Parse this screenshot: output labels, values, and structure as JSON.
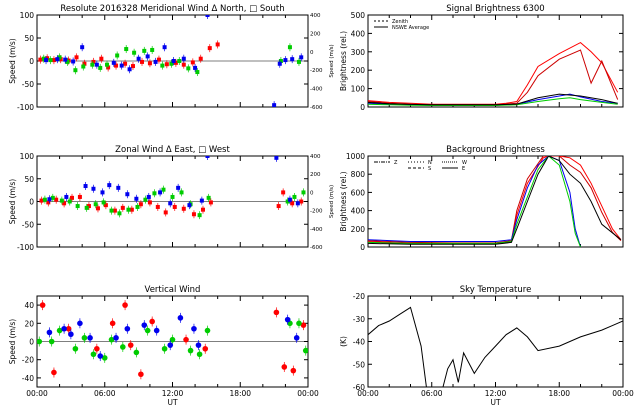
{
  "chart_data": [
    {
      "id": "meridional",
      "type": "scatter",
      "title": "Resolute   2016328     Meridional Wind    Δ North, □ South",
      "xlabel": "",
      "ylabel": "Speed (m/s)",
      "y2label": "Speed (m/s)",
      "xlim": [
        0,
        24
      ],
      "ylim": [
        -100,
        100
      ],
      "y2lim": [
        -600,
        400
      ],
      "yticks": [
        "-100",
        "-50",
        "0",
        "50",
        "100"
      ],
      "y2ticks": [
        "-600",
        "-400",
        "-200",
        "0",
        "200",
        "400"
      ],
      "series": [
        {
          "color": "#ff0000",
          "marker": "square",
          "x": [
            0.3,
            0.9,
            1.5,
            2.1,
            2.8,
            3.5,
            4.2,
            5.0,
            5.7,
            6.3,
            7.0,
            7.8,
            8.5,
            9.3,
            10.0,
            10.8,
            11.5,
            12.3,
            13.0,
            13.8,
            14.5,
            15.3,
            16.0
          ],
          "y": [
            3,
            6,
            2,
            4,
            1,
            8,
            -6,
            -2,
            5,
            -14,
            -10,
            -6,
            -11,
            -2,
            -5,
            3,
            -7,
            -4,
            -8,
            -3,
            5,
            28,
            36
          ]
        },
        {
          "color": "#00cc00",
          "marker": "square",
          "x": [
            0.6,
            1.2,
            2.0,
            2.7,
            3.4,
            4.1,
            4.9,
            5.6,
            6.2,
            7.1,
            7.9,
            8.6,
            9.5,
            10.2,
            11.1,
            11.9,
            12.6,
            13.4,
            14.2,
            21.6,
            22.4,
            23.2
          ],
          "y": [
            5,
            2,
            8,
            -2,
            -20,
            -12,
            -8,
            -15,
            -8,
            12,
            26,
            18,
            22,
            24,
            -10,
            -6,
            0,
            -16,
            -24,
            0,
            30,
            -2
          ]
        },
        {
          "color": "#0000ee",
          "marker": "square",
          "x": [
            0.8,
            1.8,
            2.5,
            3.2,
            4.0,
            5.3,
            6.8,
            7.5,
            8.2,
            9.0,
            9.8,
            10.5,
            11.3,
            12.1,
            13.0,
            14.0,
            15.1,
            21.0,
            21.5,
            22.0,
            22.6,
            23.4
          ],
          "y": [
            2,
            4,
            3,
            -1,
            30,
            -8,
            -4,
            -10,
            -18,
            5,
            10,
            -2,
            30,
            0,
            5,
            -15,
            100,
            -96,
            -6,
            2,
            4,
            8
          ]
        }
      ]
    },
    {
      "id": "signal",
      "type": "line",
      "title": "Signal Brightness        6300",
      "xlabel": "",
      "ylabel": "Brightness (rel.)",
      "xlim": [
        0,
        24
      ],
      "ylim": [
        0,
        500
      ],
      "yticks": [
        "0",
        "100",
        "200",
        "300",
        "400",
        "500"
      ],
      "legend": [
        "Zenith",
        "NSWE Average"
      ],
      "legend_placement": "top-left",
      "series": [
        {
          "color": "#ff0000",
          "x": [
            0,
            2,
            4,
            6,
            8,
            10,
            12,
            13,
            14,
            15,
            16,
            18,
            20,
            21,
            22,
            23.5
          ],
          "y": [
            35,
            25,
            20,
            15,
            15,
            15,
            15,
            20,
            30,
            120,
            220,
            290,
            350,
            300,
            240,
            80
          ]
        },
        {
          "color": "#cc0000",
          "x": [
            0,
            2,
            4,
            6,
            8,
            10,
            12,
            14,
            15,
            16,
            18,
            20,
            21,
            22,
            23.5
          ],
          "y": [
            30,
            20,
            15,
            12,
            12,
            12,
            12,
            20,
            80,
            170,
            260,
            310,
            130,
            250,
            40
          ]
        },
        {
          "color": "#0000ee",
          "x": [
            0,
            2,
            4,
            6,
            8,
            10,
            12,
            14,
            16,
            18,
            19,
            20,
            22,
            23.5
          ],
          "y": [
            20,
            15,
            12,
            10,
            10,
            10,
            10,
            15,
            40,
            60,
            70,
            55,
            30,
            20
          ]
        },
        {
          "color": "#00cc00",
          "x": [
            0,
            2,
            4,
            6,
            8,
            10,
            12,
            14,
            16,
            18,
            19,
            20,
            22,
            23.5
          ],
          "y": [
            15,
            12,
            10,
            8,
            8,
            8,
            8,
            12,
            30,
            45,
            50,
            40,
            25,
            15
          ]
        },
        {
          "color": "#000000",
          "x": [
            0,
            2,
            4,
            6,
            8,
            10,
            12,
            14,
            16,
            18,
            20,
            22,
            23.5
          ],
          "y": [
            25,
            18,
            14,
            12,
            12,
            12,
            12,
            16,
            50,
            70,
            60,
            40,
            20
          ]
        }
      ]
    },
    {
      "id": "zonal",
      "type": "scatter",
      "title": "Zonal Wind      Δ East, □ West",
      "xlabel": "",
      "ylabel": "Speed (m/s)",
      "y2label": "Speed (m/s)",
      "xlim": [
        0,
        24
      ],
      "ylim": [
        -100,
        100
      ],
      "y2lim": [
        -600,
        400
      ],
      "yticks": [
        "-100",
        "-50",
        "0",
        "50",
        "100"
      ],
      "y2ticks": [
        "-600",
        "-400",
        "-200",
        "0",
        "200",
        "400"
      ],
      "series": [
        {
          "color": "#ff0000",
          "marker": "square",
          "x": [
            0.4,
            1.0,
            1.7,
            2.4,
            3.1,
            3.8,
            4.6,
            5.4,
            6.1,
            6.9,
            7.6,
            8.4,
            9.2,
            10.0,
            10.7,
            11.4,
            12.2,
            13.0,
            13.9,
            14.7,
            15.4,
            21.4,
            21.8,
            22.6,
            23.4
          ],
          "y": [
            2,
            -2,
            4,
            -4,
            8,
            10,
            -10,
            -15,
            -8,
            -20,
            -14,
            -18,
            -6,
            -2,
            -12,
            -24,
            -12,
            -16,
            -28,
            -18,
            -2,
            -10,
            20,
            -4,
            0
          ]
        },
        {
          "color": "#00cc00",
          "marker": "square",
          "x": [
            0.7,
            1.4,
            2.2,
            2.9,
            3.6,
            4.4,
            5.2,
            5.9,
            6.6,
            7.3,
            8.1,
            8.9,
            9.6,
            10.4,
            11.2,
            12.0,
            12.8,
            13.6,
            14.4,
            15.2,
            22.2,
            22.8,
            23.6
          ],
          "y": [
            4,
            8,
            2,
            0,
            -10,
            -14,
            -6,
            -2,
            -20,
            -26,
            -18,
            -12,
            4,
            18,
            26,
            10,
            20,
            -6,
            -30,
            8,
            0,
            10,
            20
          ]
        },
        {
          "color": "#0000ee",
          "marker": "square",
          "x": [
            1.1,
            2.6,
            4.3,
            5.0,
            5.8,
            6.4,
            7.2,
            8.0,
            8.8,
            9.9,
            10.9,
            11.8,
            12.5,
            13.5,
            14.6,
            15.1,
            21.2,
            22.4,
            23.1
          ],
          "y": [
            5,
            10,
            34,
            28,
            20,
            36,
            30,
            16,
            6,
            10,
            20,
            -4,
            30,
            -8,
            2,
            100,
            96,
            4,
            -4
          ]
        }
      ]
    },
    {
      "id": "background",
      "type": "line",
      "title": "Background Brightness",
      "xlabel": "",
      "ylabel": "Brightness (rel.)",
      "xlim": [
        0,
        24
      ],
      "ylim": [
        0,
        1000
      ],
      "yticks": [
        "0",
        "200",
        "400",
        "600",
        "800",
        "1000"
      ],
      "legend": [
        "Z",
        "N",
        "S",
        "W",
        "E"
      ],
      "legend_placement": "top-left",
      "series": [
        {
          "color": "#ff0000",
          "x": [
            0,
            4,
            8,
            12,
            13.5,
            14,
            15,
            16.5,
            17,
            18,
            19,
            20,
            21,
            22,
            23,
            23.8
          ],
          "y": [
            60,
            40,
            40,
            40,
            60,
            350,
            700,
            980,
            1000,
            1000,
            980,
            900,
            700,
            450,
            200,
            80
          ]
        },
        {
          "color": "#cc0000",
          "x": [
            0,
            4,
            8,
            12,
            13.5,
            14,
            15,
            16.5,
            17,
            18,
            19,
            20,
            21,
            22,
            23,
            23.8
          ],
          "y": [
            70,
            50,
            45,
            45,
            70,
            400,
            750,
            1000,
            1000,
            1000,
            900,
            820,
            650,
            380,
            160,
            70
          ]
        },
        {
          "color": "#0000ee",
          "x": [
            0,
            4,
            8,
            12,
            13.5,
            14,
            15,
            16,
            17,
            18,
            19,
            19.5,
            20
          ],
          "y": [
            80,
            60,
            60,
            60,
            80,
            300,
            650,
            900,
            1000,
            950,
            600,
            200,
            0
          ]
        },
        {
          "color": "#00cc00",
          "x": [
            0,
            4,
            8,
            12,
            13.5,
            14,
            15,
            16,
            17,
            18,
            19,
            19.5,
            20
          ],
          "y": [
            50,
            40,
            40,
            40,
            60,
            250,
            550,
            850,
            1000,
            900,
            500,
            150,
            0
          ]
        },
        {
          "color": "#000000",
          "x": [
            0,
            4,
            8,
            12,
            13.5,
            14,
            15,
            16,
            17,
            18,
            19,
            20,
            21,
            22,
            23.8
          ],
          "y": [
            40,
            30,
            30,
            30,
            50,
            200,
            500,
            800,
            1000,
            950,
            800,
            700,
            500,
            250,
            80
          ]
        }
      ]
    },
    {
      "id": "vertical",
      "type": "scatter",
      "title": "Vertical Wind",
      "xlabel": "UT",
      "ylabel": "Speed (m/s)",
      "xlim": [
        0,
        24
      ],
      "ylim": [
        -50,
        50
      ],
      "yticks": [
        "-40",
        "-20",
        "0",
        "20",
        "40"
      ],
      "xticks": [
        "00:00",
        "06:00",
        "12:00",
        "18:00",
        "00:00"
      ],
      "series": [
        {
          "color": "#ff0000",
          "marker": "circle",
          "x": [
            0.5,
            1.5,
            2.8,
            5.3,
            6.7,
            7.8,
            8.3,
            9.2,
            10.2,
            13.2,
            14.9,
            21.2,
            21.9,
            22.7,
            23.6
          ],
          "y": [
            40,
            -34,
            14,
            -8,
            20,
            40,
            -4,
            -36,
            22,
            2,
            -8,
            32,
            -28,
            -32,
            18
          ]
        },
        {
          "color": "#00cc00",
          "marker": "circle",
          "x": [
            0.2,
            1.3,
            2.0,
            3.4,
            4.2,
            5.0,
            6.0,
            6.6,
            7.6,
            8.8,
            9.8,
            11.3,
            12.0,
            13.6,
            14.4,
            15.1,
            22.4,
            23.2,
            23.8
          ],
          "y": [
            0,
            0,
            12,
            -8,
            4,
            -14,
            -18,
            2,
            -6,
            -12,
            12,
            -8,
            2,
            -10,
            -14,
            12,
            20,
            20,
            -10
          ]
        },
        {
          "color": "#0000ee",
          "marker": "circle",
          "x": [
            1.1,
            2.4,
            3.0,
            3.8,
            4.7,
            5.6,
            7.0,
            8.0,
            9.5,
            10.6,
            11.8,
            12.7,
            13.9,
            14.3,
            22.2,
            23.0
          ],
          "y": [
            10,
            14,
            8,
            20,
            4,
            -16,
            4,
            14,
            18,
            12,
            -4,
            26,
            14,
            -4,
            24,
            4
          ]
        }
      ]
    },
    {
      "id": "sky",
      "type": "line",
      "title": "Sky Temperature",
      "xlabel": "UT",
      "ylabel": "(K)",
      "xlim": [
        0,
        24
      ],
      "ylim": [
        -60,
        -20
      ],
      "yticks": [
        "-60",
        "-50",
        "-40",
        "-30",
        "-20"
      ],
      "xticks": [
        "00:00",
        "06:00",
        "12:00",
        "18:00",
        "00:00"
      ],
      "series": [
        {
          "color": "#000000",
          "x": [
            0,
            1,
            2,
            3,
            4,
            5,
            5.5,
            6,
            6.5,
            7,
            7.5,
            8,
            8.5,
            9,
            10,
            11,
            12,
            13,
            14,
            15,
            16,
            18,
            20,
            22,
            23,
            24
          ],
          "y": [
            -37,
            -33,
            -31,
            -28,
            -25,
            -42,
            -60,
            -63,
            -63,
            -61,
            -52,
            -48,
            -58,
            -45,
            -54,
            -47,
            -42,
            -37,
            -34,
            -38,
            -44,
            -42,
            -38,
            -35,
            -33,
            -31
          ]
        }
      ]
    }
  ]
}
